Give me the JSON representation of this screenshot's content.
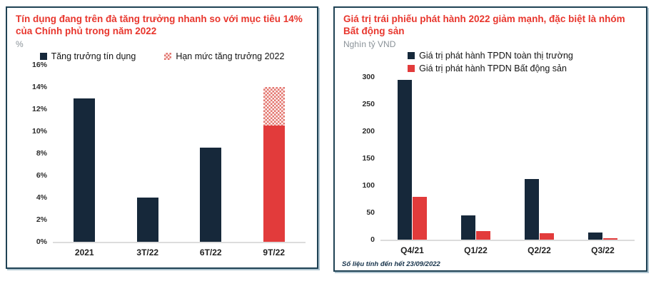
{
  "colors": {
    "navy": "#16283a",
    "red": "#e23b3b",
    "title_red": "#e8362d",
    "unit_gray": "#8a9298",
    "baseline": "#dcdcdc",
    "panel_border": "#1f4254"
  },
  "left_panel": {
    "title": "Tín dụng đang trên đà tăng trưởng nhanh so với mục tiêu 14% của Chính phủ trong năm 2022",
    "unit": "%",
    "legend": [
      {
        "label": "Tăng trưởng tín dụng",
        "swatch": "navy-solid"
      },
      {
        "label": "Hạn mức tăng trưởng 2022",
        "swatch": "red-hatched"
      }
    ]
  },
  "right_panel": {
    "title": "Giá trị trái phiếu phát hành 2022 giảm mạnh, đặc biệt là nhóm Bất động sản",
    "unit": "Nghìn tỷ VND",
    "legend": [
      {
        "label": "Giá trị phát hành TPDN toàn thị trường",
        "swatch": "navy-solid"
      },
      {
        "label": "Giá trị phát hành TPDN Bất động sản",
        "swatch": "red-solid"
      }
    ],
    "footnote": "Số liệu tính đến hết 23/09/2022"
  },
  "chart_data": [
    {
      "type": "bar",
      "title": "Tín dụng đang trên đà tăng trưởng nhanh so với mục tiêu 14% của Chính phủ trong năm 2022",
      "ylabel": "%",
      "categories": [
        "2021",
        "3T/22",
        "6T/22",
        "9T/22"
      ],
      "series": [
        {
          "name": "Tăng trưởng tín dụng",
          "values": [
            13,
            4,
            8.5,
            10.5
          ],
          "bar_colors": [
            "navy",
            "navy",
            "navy",
            "red"
          ]
        },
        {
          "name": "Hạn mức tăng trưởng 2022",
          "values": [
            0,
            0,
            0,
            3.5
          ],
          "style": "hatched-cap",
          "note": "hatched cap stacked on 9T/22 reaching the 14% target"
        }
      ],
      "ylim": [
        0,
        16
      ],
      "ytick_step": 2,
      "ytick_format": "percent",
      "grid": false,
      "legend_position": "top"
    },
    {
      "type": "bar",
      "title": "Giá trị trái phiếu phát hành 2022 giảm mạnh, đặc biệt là nhóm Bất động sản",
      "ylabel": "Nghìn tỷ VND",
      "categories": [
        "Q4/21",
        "Q1/22",
        "Q2/22",
        "Q3/22"
      ],
      "series": [
        {
          "name": "Giá trị phát hành TPDN toàn thị trường",
          "values": [
            295,
            45,
            112,
            13
          ],
          "color": "navy"
        },
        {
          "name": "Giá trị phát hành TPDN Bất động sản",
          "values": [
            79,
            16,
            12,
            3
          ],
          "color": "red"
        }
      ],
      "ylim": [
        0,
        300
      ],
      "ytick_step": 50,
      "ytick_format": "number",
      "grid": false,
      "legend_position": "top"
    }
  ]
}
